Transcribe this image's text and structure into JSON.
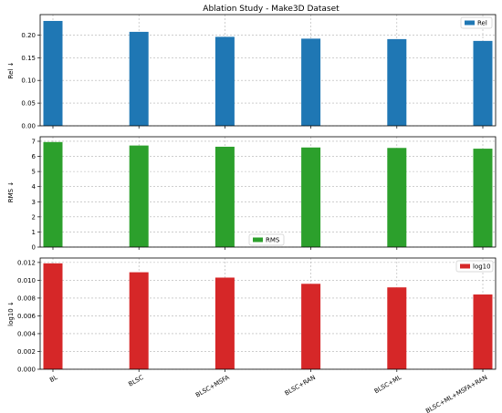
{
  "chart_data": {
    "type": "bar",
    "title": "Ablation Study - Make3D Dataset",
    "categories": [
      "BL",
      "BLSC",
      "BLSC+MSFA",
      "BLSC+RAN",
      "BLSC+ML",
      "BLSC+ML+MSFA+RAN"
    ],
    "grid": true,
    "panels": [
      {
        "name": "Rel",
        "ylabel": "Rel ↓",
        "values": [
          0.231,
          0.207,
          0.196,
          0.192,
          0.191,
          0.187
        ],
        "ylim": [
          0,
          0.245
        ],
        "yticks": [
          0.0,
          0.05,
          0.1,
          0.15,
          0.2
        ],
        "ytick_labels": [
          "0.00",
          "0.05",
          "0.10",
          "0.15",
          "0.20"
        ],
        "color": "#1f77b4",
        "legend_label": "Rel",
        "legend_position": "top-right"
      },
      {
        "name": "RMS",
        "ylabel": "RMS ↓",
        "values": [
          6.95,
          6.72,
          6.64,
          6.59,
          6.56,
          6.51
        ],
        "ylim": [
          0,
          7.3
        ],
        "yticks": [
          0,
          1,
          2,
          3,
          4,
          5,
          6,
          7
        ],
        "ytick_labels": [
          "0",
          "1",
          "2",
          "3",
          "4",
          "5",
          "6",
          "7"
        ],
        "color": "#2ca02c",
        "legend_label": "RMS",
        "legend_position": "lower-center"
      },
      {
        "name": "log10",
        "ylabel": "log10 ↓",
        "values": [
          0.0119,
          0.0109,
          0.0103,
          0.0096,
          0.0092,
          0.0084
        ],
        "ylim": [
          0,
          0.0125
        ],
        "yticks": [
          0.0,
          0.002,
          0.004,
          0.006,
          0.008,
          0.01,
          0.012
        ],
        "ytick_labels": [
          "0.000",
          "0.002",
          "0.004",
          "0.006",
          "0.008",
          "0.010",
          "0.012"
        ],
        "color": "#d62728",
        "legend_label": "log10",
        "legend_position": "top-right"
      }
    ]
  }
}
